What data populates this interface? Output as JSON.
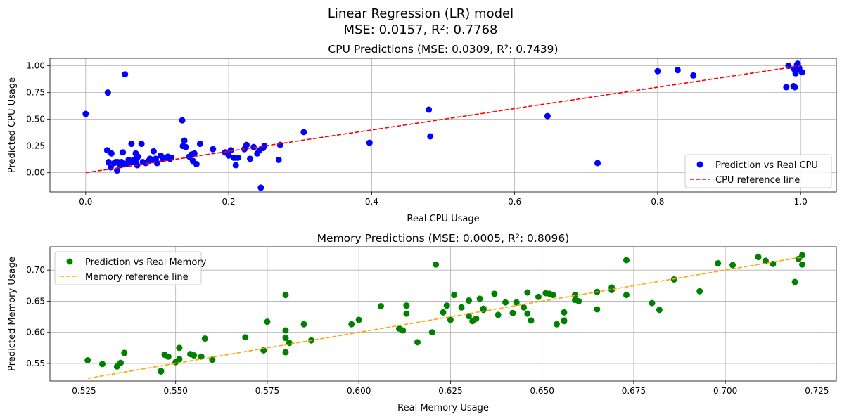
{
  "figure": {
    "title_line1": "Linear Regression (LR) model",
    "title_line2": "MSE: 0.0157, R²: 0.7768"
  },
  "chart_data": [
    {
      "type": "scatter",
      "title": "CPU Predictions (MSE: 0.0309, R²: 0.7439)",
      "xlabel": "Real CPU Usage",
      "ylabel": "Predicted CPU Usage",
      "xlim": [
        -0.05,
        1.05
      ],
      "ylim": [
        -0.18,
        1.07
      ],
      "xticks": [
        0.0,
        0.2,
        0.4,
        0.6,
        0.8,
        1.0
      ],
      "xtick_labels": [
        "0.0",
        "0.2",
        "0.4",
        "0.6",
        "0.8",
        "1.0"
      ],
      "yticks": [
        0.0,
        0.25,
        0.5,
        0.75,
        1.0
      ],
      "ytick_labels": [
        "0.00",
        "0.25",
        "0.50",
        "0.75",
        "1.00"
      ],
      "grid": true,
      "legend_position": "lower right",
      "series": [
        {
          "name": "Prediction vs Real CPU",
          "kind": "scatter",
          "color": "#0000ff",
          "x": [
            0.0,
            0.031,
            0.055,
            0.03,
            0.032,
            0.036,
            0.04,
            0.045,
            0.05,
            0.055,
            0.06,
            0.064,
            0.07,
            0.072,
            0.078,
            0.084,
            0.09,
            0.095,
            0.1,
            0.105,
            0.115,
            0.12,
            0.035,
            0.044,
            0.052,
            0.058,
            0.065,
            0.07,
            0.08,
            0.088,
            0.092,
            0.098,
            0.108,
            0.114,
            0.118,
            0.135,
            0.138,
            0.14,
            0.145,
            0.15,
            0.152,
            0.155,
            0.16,
            0.178,
            0.195,
            0.2,
            0.203,
            0.207,
            0.21,
            0.213,
            0.222,
            0.225,
            0.23,
            0.235,
            0.24,
            0.243,
            0.248,
            0.25,
            0.27,
            0.272,
            0.305,
            0.397,
            0.48,
            0.482,
            0.646,
            0.716,
            0.8,
            0.828,
            0.85,
            0.98,
            0.983,
            0.99,
            0.992,
            0.994,
            0.995,
            0.996,
            0.998,
            1.002,
            0.993,
            0.991,
            0.136,
            0.245,
            0.042,
            0.072,
            0.048,
            0.067,
            0.073,
            0.112,
            0.148,
            0.21
          ],
          "y": [
            0.55,
            0.75,
            0.92,
            0.21,
            0.1,
            0.18,
            0.09,
            0.1,
            0.1,
            0.08,
            0.12,
            0.27,
            0.18,
            0.14,
            0.27,
            0.09,
            0.13,
            0.2,
            0.09,
            0.16,
            0.15,
            0.14,
            0.05,
            0.02,
            0.19,
            0.08,
            0.1,
            0.12,
            0.1,
            0.11,
            0.12,
            0.13,
            0.13,
            0.14,
            0.13,
            0.49,
            0.3,
            0.24,
            0.15,
            0.11,
            0.18,
            0.08,
            0.27,
            0.22,
            0.19,
            0.16,
            0.21,
            0.14,
            0.07,
            0.14,
            0.22,
            0.26,
            0.13,
            0.24,
            0.18,
            0.21,
            0.23,
            0.25,
            0.12,
            0.26,
            0.38,
            0.28,
            0.59,
            0.34,
            0.53,
            0.09,
            0.95,
            0.96,
            0.91,
            0.8,
            1.0,
            0.81,
            0.8,
            0.96,
            1.01,
            1.02,
            0.98,
            0.94,
            0.93,
            0.97,
            0.25,
            -0.14,
            0.1,
            0.07,
            0.07,
            0.12,
            0.15,
            0.14,
            0.17,
            0.14
          ]
        },
        {
          "name": "CPU reference line",
          "kind": "line",
          "style": "dashed",
          "color": "#ff0000",
          "x": [
            0.0,
            1.0
          ],
          "y": [
            0.0,
            1.0
          ]
        }
      ]
    },
    {
      "type": "scatter",
      "title": "Memory Predictions (MSE: 0.0005, R²: 0.8096)",
      "xlabel": "Real Memory Usage",
      "ylabel": "Predicted Memory Usage",
      "xlim": [
        0.5157,
        0.7303
      ],
      "ylim": [
        0.5217,
        0.7375
      ],
      "xticks": [
        0.525,
        0.55,
        0.575,
        0.6,
        0.625,
        0.65,
        0.675,
        0.7,
        0.725
      ],
      "xtick_labels": [
        "0.525",
        "0.550",
        "0.575",
        "0.600",
        "0.625",
        "0.650",
        "0.675",
        "0.700",
        "0.725"
      ],
      "yticks": [
        0.55,
        0.6,
        0.65,
        0.7
      ],
      "ytick_labels": [
        "0.55",
        "0.60",
        "0.65",
        "0.70"
      ],
      "grid": true,
      "legend_position": "upper left",
      "series": [
        {
          "name": "Prediction vs Real Memory",
          "kind": "scatter",
          "color": "#008000",
          "x": [
            0.526,
            0.53,
            0.534,
            0.535,
            0.536,
            0.546,
            0.547,
            0.548,
            0.55,
            0.551,
            0.554,
            0.555,
            0.557,
            0.558,
            0.56,
            0.569,
            0.574,
            0.575,
            0.58,
            0.58,
            0.58,
            0.58,
            0.581,
            0.585,
            0.587,
            0.598,
            0.6,
            0.606,
            0.611,
            0.612,
            0.613,
            0.613,
            0.616,
            0.62,
            0.621,
            0.623,
            0.624,
            0.625,
            0.626,
            0.628,
            0.63,
            0.63,
            0.631,
            0.632,
            0.633,
            0.634,
            0.637,
            0.638,
            0.64,
            0.642,
            0.643,
            0.645,
            0.646,
            0.646,
            0.647,
            0.649,
            0.651,
            0.652,
            0.653,
            0.654,
            0.656,
            0.656,
            0.656,
            0.659,
            0.659,
            0.66,
            0.665,
            0.665,
            0.669,
            0.669,
            0.673,
            0.673,
            0.68,
            0.682,
            0.686,
            0.693,
            0.698,
            0.702,
            0.709,
            0.711,
            0.713,
            0.719,
            0.72,
            0.721,
            0.721,
            0.546,
            0.551,
            0.634
          ],
          "y": [
            0.555,
            0.549,
            0.545,
            0.551,
            0.567,
            0.537,
            0.564,
            0.561,
            0.552,
            0.575,
            0.565,
            0.563,
            0.561,
            0.59,
            0.556,
            0.592,
            0.571,
            0.617,
            0.603,
            0.568,
            0.591,
            0.66,
            0.583,
            0.613,
            0.587,
            0.613,
            0.62,
            0.642,
            0.606,
            0.603,
            0.63,
            0.643,
            0.584,
            0.6,
            0.709,
            0.632,
            0.643,
            0.62,
            0.66,
            0.64,
            0.626,
            0.651,
            0.618,
            0.622,
            0.654,
            0.636,
            0.662,
            0.628,
            0.648,
            0.631,
            0.648,
            0.64,
            0.664,
            0.63,
            0.619,
            0.657,
            0.663,
            0.662,
            0.66,
            0.613,
            0.618,
            0.632,
            0.619,
            0.66,
            0.652,
            0.65,
            0.637,
            0.665,
            0.668,
            0.672,
            0.716,
            0.66,
            0.647,
            0.636,
            0.685,
            0.666,
            0.711,
            0.708,
            0.721,
            0.715,
            0.71,
            0.681,
            0.718,
            0.724,
            0.709,
            0.538,
            0.557,
            0.638
          ]
        },
        {
          "name": "Memory reference line",
          "kind": "line",
          "style": "dashed",
          "color": "#ffa500",
          "x": [
            0.526,
            0.721
          ],
          "y": [
            0.526,
            0.721
          ]
        }
      ]
    }
  ]
}
